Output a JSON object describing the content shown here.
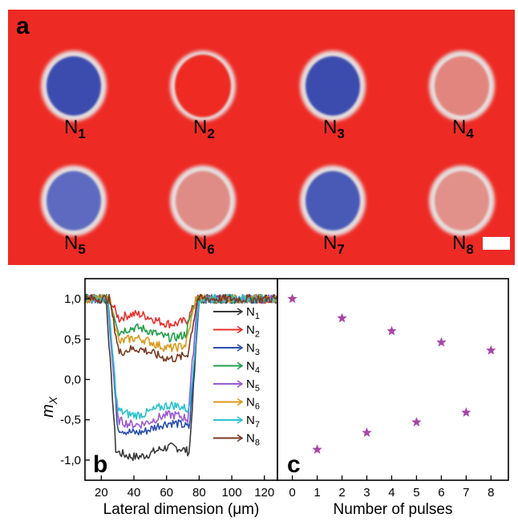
{
  "panel_a": {
    "label": "a",
    "background_color": "#ee2a24",
    "nanodots": [
      {
        "label": "N",
        "sub": "1",
        "core_color": "#3a4cae",
        "core_level": 1.0,
        "ring_only": false
      },
      {
        "label": "N",
        "sub": "2",
        "core_color": "#ee2a24",
        "core_level": 0.0,
        "ring_only": true
      },
      {
        "label": "N",
        "sub": "3",
        "core_color": "#3a4cae",
        "core_level": 1.0,
        "ring_only": false
      },
      {
        "label": "N",
        "sub": "4",
        "core_color": "#e2857e",
        "core_level": 0.3,
        "ring_only": false
      },
      {
        "label": "N",
        "sub": "5",
        "core_color": "#5d6bbf",
        "core_level": 0.75,
        "ring_only": false
      },
      {
        "label": "N",
        "sub": "6",
        "core_color": "#e08c86",
        "core_level": 0.3,
        "ring_only": false
      },
      {
        "label": "N",
        "sub": "7",
        "core_color": "#4a5ab6",
        "core_level": 0.85,
        "ring_only": false
      },
      {
        "label": "N",
        "sub": "8",
        "core_color": "#e2918a",
        "core_level": 0.3,
        "ring_only": false
      }
    ],
    "ring_color": "#e6dede",
    "scale_bar_color": "#ffffff"
  },
  "chart_data": [
    {
      "type": "line",
      "panel_label": "b",
      "xlabel": "Lateral dimension (μm)",
      "ylabel": "m",
      "ylabel_sub": "X",
      "xlim": [
        10,
        128
      ],
      "ylim": [
        -1.25,
        1.25
      ],
      "xticks": [
        20,
        40,
        60,
        80,
        100,
        120
      ],
      "yticks": [
        -1.0,
        -0.5,
        0.0,
        0.5,
        1.0
      ],
      "ytick_labels": [
        "-1,0",
        "-0,5",
        "0,0",
        "0,5",
        "1,0"
      ],
      "legend_position": "right",
      "series": [
        {
          "name": "N",
          "sub": "1",
          "color": "#3a3a3a",
          "plateau": -0.9
        },
        {
          "name": "N",
          "sub": "2",
          "color": "#e8302c",
          "plateau": 0.75
        },
        {
          "name": "N",
          "sub": "3",
          "color": "#2a4fb0",
          "plateau": -0.6
        },
        {
          "name": "N",
          "sub": "4",
          "color": "#22a04a",
          "plateau": 0.58
        },
        {
          "name": "N",
          "sub": "5",
          "color": "#9a5bd0",
          "plateau": -0.5
        },
        {
          "name": "N",
          "sub": "6",
          "color": "#d89a1c",
          "plateau": 0.45
        },
        {
          "name": "N",
          "sub": "7",
          "color": "#2bc1cf",
          "plateau": -0.38
        },
        {
          "name": "N",
          "sub": "8",
          "color": "#7a3a24",
          "plateau": 0.32
        }
      ]
    },
    {
      "type": "scatter",
      "panel_label": "c",
      "xlabel": "Number of pulses",
      "xlim": [
        -0.6,
        8.7
      ],
      "ylim": [
        -1.25,
        1.25
      ],
      "xticks": [
        0,
        1,
        2,
        3,
        4,
        5,
        6,
        7,
        8
      ],
      "marker": "star",
      "marker_color": "#a845a8",
      "points": [
        {
          "x": 0,
          "y": 1.0
        },
        {
          "x": 1,
          "y": -0.87
        },
        {
          "x": 2,
          "y": 0.76
        },
        {
          "x": 3,
          "y": -0.66
        },
        {
          "x": 4,
          "y": 0.6
        },
        {
          "x": 5,
          "y": -0.53
        },
        {
          "x": 6,
          "y": 0.46
        },
        {
          "x": 7,
          "y": -0.41
        },
        {
          "x": 8,
          "y": 0.36
        }
      ]
    }
  ]
}
